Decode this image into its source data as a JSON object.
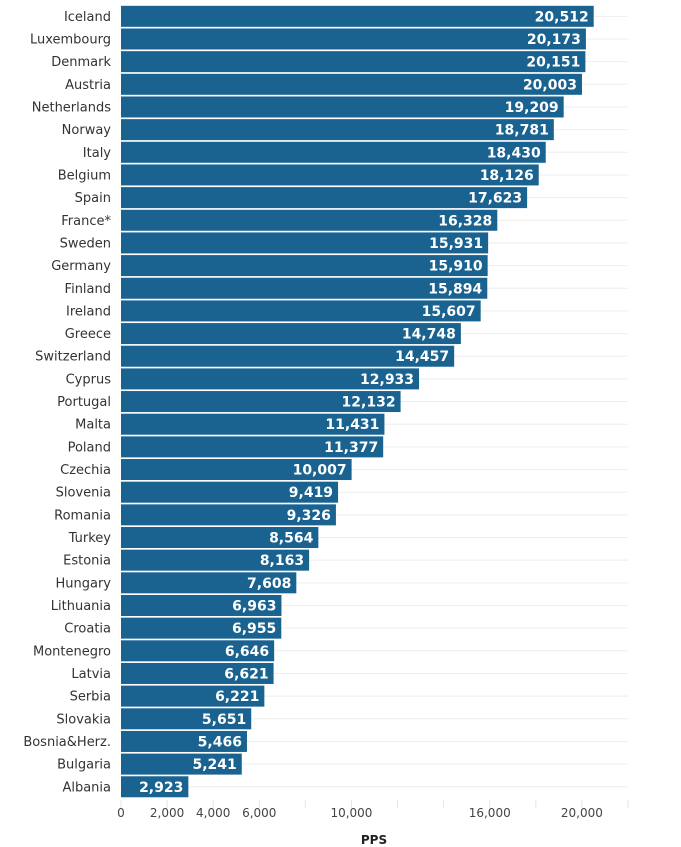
{
  "chart_data": {
    "type": "bar",
    "orientation": "horizontal",
    "categories": [
      "Iceland",
      "Luxembourg",
      "Denmark",
      "Austria",
      "Netherlands",
      "Norway",
      "Italy",
      "Belgium",
      "Spain",
      "France*",
      "Sweden",
      "Germany",
      "Finland",
      "Ireland",
      "Greece",
      "Switzerland",
      "Cyprus",
      "Portugal",
      "Malta",
      "Poland",
      "Czechia",
      "Slovenia",
      "Romania",
      "Turkey",
      "Estonia",
      "Hungary",
      "Lithuania",
      "Croatia",
      "Montenegro",
      "Latvia",
      "Serbia",
      "Slovakia",
      "Bosnia&Herz.",
      "Bulgaria",
      "Albania"
    ],
    "values": [
      20512,
      20173,
      20151,
      20003,
      19209,
      18781,
      18430,
      18126,
      17623,
      16328,
      15931,
      15910,
      15894,
      15607,
      14748,
      14457,
      12933,
      12132,
      11431,
      11377,
      10007,
      9419,
      9326,
      8564,
      8163,
      7608,
      6963,
      6955,
      6646,
      6621,
      6221,
      5651,
      5466,
      5241,
      2923
    ],
    "value_labels": [
      "20,512",
      "20,173",
      "20,151",
      "20,003",
      "19,209",
      "18,781",
      "18,430",
      "18,126",
      "17,623",
      "16,328",
      "15,931",
      "15,910",
      "15,894",
      "15,607",
      "14,748",
      "14,457",
      "12,933",
      "12,132",
      "11,431",
      "11,377",
      "10,007",
      "9,419",
      "9,326",
      "8,564",
      "8,163",
      "7,608",
      "6,963",
      "6,955",
      "6,646",
      "6,621",
      "6,221",
      "5,651",
      "5,466",
      "5,241",
      "2,923"
    ],
    "xlabel": "PPS",
    "ylabel": "",
    "xlim": [
      0,
      22000
    ],
    "x_tick_values": [
      0,
      2000,
      4000,
      6000,
      10000,
      16000,
      20000
    ],
    "x_tick_labels": [
      "0",
      "2,000",
      "4,000",
      "6,000",
      "10,000",
      "16,000",
      "20,000"
    ],
    "grid": true,
    "bar_color": "#1a6391"
  }
}
